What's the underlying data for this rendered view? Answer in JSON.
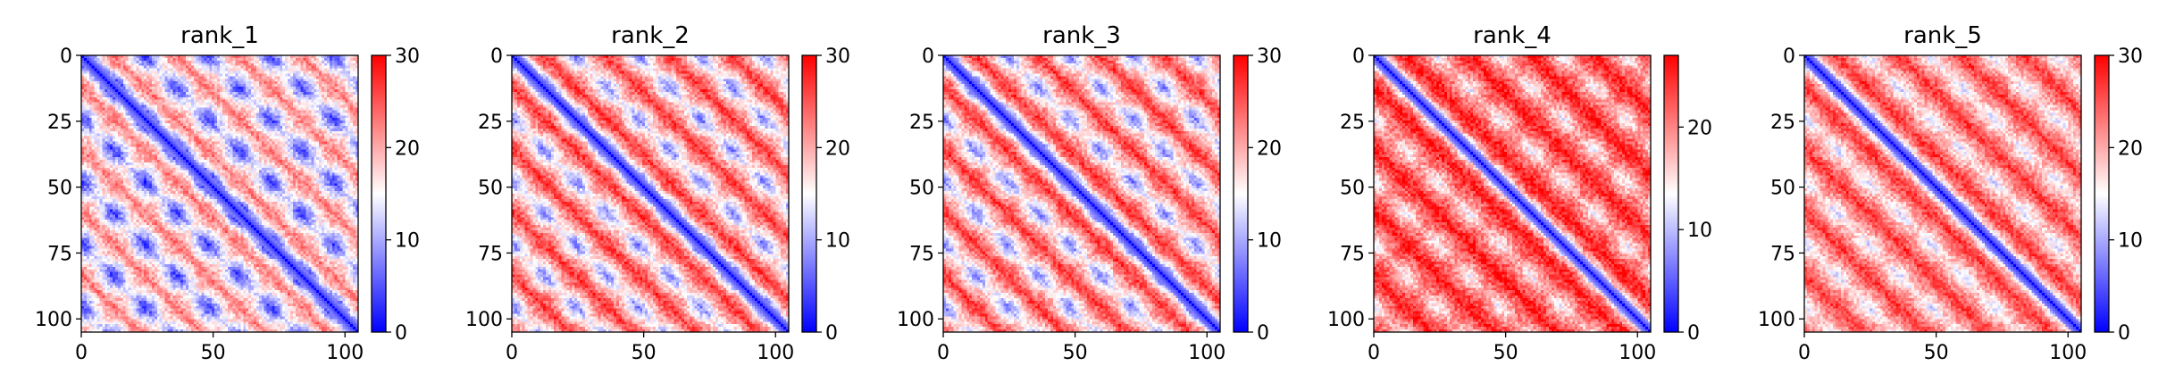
{
  "chart_data": [
    {
      "type": "heatmap",
      "title": "rank_1",
      "matrix_size": 106,
      "diagonal_band": "blue",
      "off_diagonal_pattern": "periodic blue patches (~24-residue period), red between",
      "xticks": [
        "0",
        "50",
        "100"
      ],
      "yticks": [
        "0",
        "25",
        "50",
        "75",
        "100"
      ],
      "xlim": [
        0,
        105
      ],
      "ylim": [
        105,
        0
      ],
      "colorbar": {
        "ticks": [
          "0",
          "10",
          "20",
          "30"
        ],
        "range": [
          0,
          30
        ],
        "colors": [
          "#0000ff",
          "#ffffff",
          "#ff0000"
        ]
      },
      "texture": {
        "period": 24,
        "patch_strength": 0.7,
        "base": 18,
        "amp": 5
      }
    },
    {
      "type": "heatmap",
      "title": "rank_2",
      "matrix_size": 106,
      "diagonal_band": "blue",
      "off_diagonal_pattern": "diagonal stripes of blue patches and red bands",
      "xticks": [
        "0",
        "50",
        "100"
      ],
      "yticks": [
        "0",
        "25",
        "50",
        "75",
        "100"
      ],
      "xlim": [
        0,
        105
      ],
      "ylim": [
        105,
        0
      ],
      "colorbar": {
        "ticks": [
          "0",
          "10",
          "20",
          "30"
        ],
        "range": [
          0,
          30
        ],
        "colors": [
          "#0000ff",
          "#ffffff",
          "#ff0000"
        ]
      },
      "texture": {
        "period": 24,
        "patch_strength": 0.55,
        "base": 21,
        "amp": 6
      }
    },
    {
      "type": "heatmap",
      "title": "rank_3",
      "matrix_size": 106,
      "diagonal_band": "blue",
      "off_diagonal_pattern": "diagonal stripes of blue patches and red bands",
      "xticks": [
        "0",
        "50",
        "100"
      ],
      "yticks": [
        "0",
        "25",
        "50",
        "75",
        "100"
      ],
      "xlim": [
        0,
        105
      ],
      "ylim": [
        105,
        0
      ],
      "colorbar": {
        "ticks": [
          "0",
          "10",
          "20",
          "30"
        ],
        "range": [
          0,
          30
        ],
        "colors": [
          "#0000ff",
          "#ffffff",
          "#ff0000"
        ]
      },
      "texture": {
        "period": 24,
        "patch_strength": 0.55,
        "base": 21,
        "amp": 6
      }
    },
    {
      "type": "heatmap",
      "title": "rank_4",
      "matrix_size": 106,
      "diagonal_band": "blue",
      "off_diagonal_pattern": "mostly red, faint periodic patches",
      "xticks": [
        "0",
        "50",
        "100"
      ],
      "yticks": [
        "0",
        "25",
        "50",
        "75",
        "100"
      ],
      "xlim": [
        0,
        105
      ],
      "ylim": [
        105,
        0
      ],
      "colorbar": {
        "ticks": [
          "0",
          "10",
          "20"
        ],
        "range": [
          0,
          27
        ],
        "colors": [
          "#0000ff",
          "#ffffff",
          "#ff0000"
        ]
      },
      "texture": {
        "period": 24,
        "patch_strength": 0.35,
        "base": 22,
        "amp": 4
      }
    },
    {
      "type": "heatmap",
      "title": "rank_5",
      "matrix_size": 106,
      "diagonal_band": "blue",
      "off_diagonal_pattern": "red with diagonal white streaks",
      "xticks": [
        "0",
        "50",
        "100"
      ],
      "yticks": [
        "0",
        "25",
        "50",
        "75",
        "100"
      ],
      "xlim": [
        0,
        105
      ],
      "ylim": [
        105,
        0
      ],
      "colorbar": {
        "ticks": [
          "0",
          "10",
          "20",
          "30"
        ],
        "range": [
          0,
          30
        ],
        "colors": [
          "#0000ff",
          "#ffffff",
          "#ff0000"
        ]
      },
      "texture": {
        "period": 24,
        "patch_strength": 0.3,
        "base": 22,
        "amp": 5
      }
    }
  ]
}
